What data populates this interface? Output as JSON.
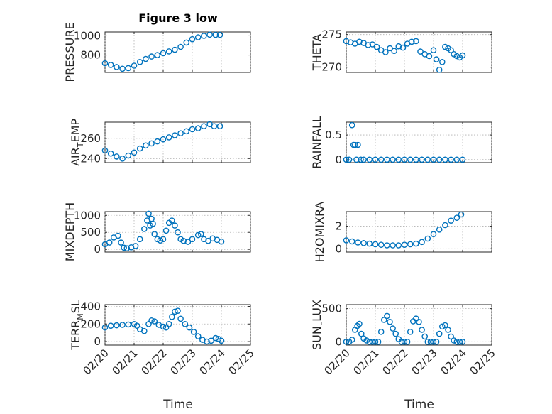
{
  "figure": {
    "title": "Figure 3 low",
    "marker_color": "#0072bd"
  },
  "chart_data": [
    {
      "id": "pressure",
      "type": "scatter",
      "title": "Figure 3 low",
      "ylabel": {
        "main": "PRESSURE",
        "sub": "",
        "tail": ""
      },
      "xlim": [
        0,
        5
      ],
      "ylim": [
        620,
        1040
      ],
      "yticks": [
        800,
        1000
      ],
      "yticklabels": [
        "800",
        "1000"
      ],
      "xticks": [
        0,
        1,
        2,
        3,
        4,
        5
      ],
      "xticklabels": [],
      "grid": true,
      "x": [
        0.0,
        0.2,
        0.4,
        0.6,
        0.8,
        1.0,
        1.2,
        1.4,
        1.6,
        1.8,
        2.0,
        2.2,
        2.4,
        2.6,
        2.8,
        3.0,
        3.2,
        3.4,
        3.6,
        3.8,
        3.95
      ],
      "y": [
        715,
        698,
        676,
        658,
        665,
        690,
        728,
        760,
        785,
        800,
        820,
        838,
        855,
        885,
        930,
        965,
        985,
        1000,
        1012,
        1010,
        1010
      ]
    },
    {
      "id": "theta",
      "type": "scatter",
      "ylabel": {
        "main": "THETA",
        "sub": "",
        "tail": ""
      },
      "xlim": [
        0,
        5
      ],
      "ylim": [
        269.2,
        275.4
      ],
      "yticks": [
        270,
        275
      ],
      "yticklabels": [
        "270",
        "275"
      ],
      "xticks": [
        0,
        1,
        2,
        3,
        4,
        5
      ],
      "xticklabels": [],
      "grid": true,
      "x": [
        0.0,
        0.15,
        0.3,
        0.45,
        0.6,
        0.75,
        0.9,
        1.05,
        1.2,
        1.35,
        1.5,
        1.65,
        1.8,
        1.95,
        2.1,
        2.25,
        2.4,
        2.55,
        2.7,
        2.85,
        3.0,
        3.1,
        3.2,
        3.3,
        3.4,
        3.5,
        3.6,
        3.7,
        3.8,
        3.9,
        4.0
      ],
      "y": [
        274.0,
        273.8,
        273.6,
        273.9,
        273.7,
        273.4,
        273.5,
        273.1,
        272.6,
        272.3,
        272.9,
        272.5,
        273.2,
        273.0,
        273.6,
        273.9,
        274.0,
        272.4,
        272.0,
        271.7,
        272.6,
        271.2,
        269.6,
        270.8,
        273.1,
        272.9,
        272.6,
        272.0,
        271.7,
        271.5,
        271.8
      ]
    },
    {
      "id": "air_temp",
      "type": "scatter",
      "ylabel": {
        "main": "AIR",
        "sub": "T",
        "tail": "EMP"
      },
      "xlim": [
        0,
        5
      ],
      "ylim": [
        236,
        276
      ],
      "yticks": [
        240,
        260
      ],
      "yticklabels": [
        "240",
        "260"
      ],
      "xticks": [
        0,
        1,
        2,
        3,
        4,
        5
      ],
      "xticklabels": [],
      "grid": true,
      "x": [
        0.0,
        0.2,
        0.4,
        0.6,
        0.8,
        1.0,
        1.2,
        1.4,
        1.6,
        1.8,
        2.0,
        2.2,
        2.4,
        2.6,
        2.8,
        3.0,
        3.2,
        3.4,
        3.6,
        3.75,
        3.95
      ],
      "y": [
        248,
        245,
        242,
        240,
        243,
        246,
        250,
        253,
        255,
        257,
        259,
        261,
        263,
        265,
        267,
        269,
        270,
        272,
        274,
        272,
        272
      ]
    },
    {
      "id": "rainfall",
      "type": "scatter",
      "ylabel": {
        "main": "RAINFALL",
        "sub": "",
        "tail": ""
      },
      "xlim": [
        0,
        5
      ],
      "ylim": [
        -0.06,
        0.76
      ],
      "yticks": [
        0,
        0.5
      ],
      "yticklabels": [
        "0",
        "0.5"
      ],
      "xticks": [
        0,
        1,
        2,
        3,
        4,
        5
      ],
      "xticklabels": [],
      "grid": true,
      "x": [
        0.0,
        0.1,
        0.2,
        0.25,
        0.3,
        0.35,
        0.4,
        0.5,
        0.6,
        0.8,
        1.0,
        1.2,
        1.4,
        1.6,
        1.8,
        2.0,
        2.2,
        2.4,
        2.6,
        2.8,
        3.0,
        3.2,
        3.4,
        3.6,
        3.8,
        4.0
      ],
      "y": [
        0,
        0,
        0.7,
        0.3,
        0.3,
        0,
        0.3,
        0,
        0,
        0,
        0,
        0,
        0,
        0,
        0,
        0,
        0,
        0,
        0,
        0,
        0,
        0,
        0,
        0,
        0,
        0
      ]
    },
    {
      "id": "mixdepth",
      "type": "scatter",
      "ylabel": {
        "main": "MIXDEPTH",
        "sub": "",
        "tail": ""
      },
      "xlim": [
        0,
        5
      ],
      "ylim": [
        -80,
        1110
      ],
      "yticks": [
        0,
        500,
        1000
      ],
      "yticklabels": [
        "0",
        "500",
        "1000"
      ],
      "xticks": [
        0,
        1,
        2,
        3,
        4,
        5
      ],
      "xticklabels": [],
      "grid": true,
      "x": [
        0.0,
        0.15,
        0.3,
        0.45,
        0.55,
        0.65,
        0.75,
        0.9,
        1.05,
        1.2,
        1.35,
        1.45,
        1.5,
        1.55,
        1.6,
        1.65,
        1.7,
        1.8,
        1.9,
        2.0,
        2.1,
        2.2,
        2.3,
        2.4,
        2.5,
        2.6,
        2.7,
        2.85,
        3.0,
        3.2,
        3.3,
        3.4,
        3.55,
        3.7,
        3.85,
        4.0
      ],
      "y": [
        150,
        200,
        350,
        400,
        200,
        50,
        30,
        60,
        100,
        300,
        600,
        850,
        1050,
        700,
        900,
        750,
        450,
        300,
        260,
        300,
        550,
        780,
        850,
        700,
        500,
        300,
        250,
        220,
        300,
        420,
        450,
        300,
        250,
        320,
        280,
        230
      ]
    },
    {
      "id": "h2omixra",
      "type": "scatter",
      "ylabel": {
        "main": "H2OMIXRA",
        "sub": "",
        "tail": ""
      },
      "xlim": [
        0,
        5
      ],
      "ylim": [
        -0.3,
        3.3
      ],
      "yticks": [
        0,
        2
      ],
      "yticklabels": [
        "0",
        "2"
      ],
      "xticks": [
        0,
        1,
        2,
        3,
        4,
        5
      ],
      "xticklabels": [],
      "grid": true,
      "x": [
        0.0,
        0.2,
        0.4,
        0.6,
        0.8,
        1.0,
        1.2,
        1.4,
        1.6,
        1.8,
        2.0,
        2.2,
        2.4,
        2.6,
        2.8,
        3.0,
        3.2,
        3.4,
        3.6,
        3.8,
        3.95
      ],
      "y": [
        0.75,
        0.65,
        0.55,
        0.5,
        0.45,
        0.4,
        0.35,
        0.3,
        0.3,
        0.3,
        0.35,
        0.4,
        0.45,
        0.6,
        0.9,
        1.3,
        1.7,
        2.1,
        2.5,
        2.75,
        3.05
      ]
    },
    {
      "id": "terr_msl",
      "type": "scatter",
      "ylabel": {
        "main": "TERR",
        "sub": "M",
        "tail": "SL"
      },
      "xlim": [
        0,
        5
      ],
      "ylim": [
        -40,
        420
      ],
      "yticks": [
        0,
        200,
        400
      ],
      "yticklabels": [
        "0",
        "200",
        "400"
      ],
      "xticks": [
        0,
        1,
        2,
        3,
        4,
        5
      ],
      "xticklabels": [
        "02/20",
        "02/21",
        "02/22",
        "02/23",
        "02/24",
        "02/25"
      ],
      "grid": true,
      "x": [
        0.0,
        0.2,
        0.4,
        0.6,
        0.8,
        1.0,
        1.1,
        1.2,
        1.35,
        1.5,
        1.6,
        1.7,
        1.85,
        2.0,
        2.1,
        2.2,
        2.3,
        2.4,
        2.5,
        2.6,
        2.75,
        2.9,
        3.05,
        3.2,
        3.35,
        3.5,
        3.65,
        3.8,
        3.9,
        4.0
      ],
      "y": [
        160,
        180,
        185,
        190,
        195,
        200,
        180,
        140,
        120,
        200,
        240,
        230,
        190,
        170,
        160,
        200,
        280,
        340,
        350,
        260,
        200,
        160,
        110,
        60,
        20,
        0,
        10,
        40,
        30,
        10
      ]
    },
    {
      "id": "sun_flux",
      "type": "scatter",
      "ylabel": {
        "main": "SUN",
        "sub": "F",
        "tail": "LUX"
      },
      "xlim": [
        0,
        5
      ],
      "ylim": [
        -50,
        560
      ],
      "yticks": [
        0,
        500
      ],
      "yticklabels": [
        "0",
        "500"
      ],
      "xticks": [
        0,
        1,
        2,
        3,
        4,
        5
      ],
      "xticklabels": [
        "02/20",
        "02/21",
        "02/22",
        "02/23",
        "02/24",
        "02/25"
      ],
      "grid": true,
      "x": [
        0.0,
        0.1,
        0.2,
        0.3,
        0.38,
        0.45,
        0.52,
        0.6,
        0.7,
        0.8,
        0.9,
        1.0,
        1.1,
        1.2,
        1.3,
        1.4,
        1.5,
        1.6,
        1.7,
        1.8,
        1.9,
        2.0,
        2.1,
        2.2,
        2.3,
        2.4,
        2.5,
        2.6,
        2.7,
        2.8,
        2.9,
        3.0,
        3.1,
        3.2,
        3.3,
        3.4,
        3.5,
        3.6,
        3.7,
        3.8,
        3.9,
        4.0
      ],
      "y": [
        0,
        0,
        30,
        180,
        240,
        270,
        120,
        50,
        20,
        0,
        0,
        0,
        0,
        150,
        330,
        390,
        300,
        200,
        120,
        40,
        0,
        0,
        0,
        150,
        310,
        350,
        300,
        180,
        80,
        0,
        0,
        0,
        0,
        120,
        230,
        250,
        180,
        80,
        20,
        0,
        0,
        0
      ]
    }
  ],
  "xlabel": "Time"
}
